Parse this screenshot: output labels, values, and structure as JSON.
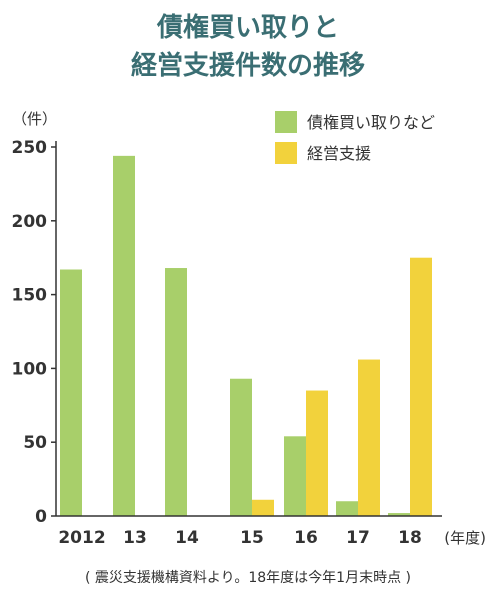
{
  "chart_data": {
    "type": "bar",
    "title_lines": [
      "債権買い取りと",
      "経営支援件数の推移"
    ],
    "ylabel": "（件）",
    "xlabel": "(年度)",
    "ylim": [
      0,
      250
    ],
    "yticks": [
      0,
      50,
      100,
      150,
      200,
      250
    ],
    "categories": [
      "2012",
      "13",
      "14",
      "15",
      "16",
      "17",
      "18"
    ],
    "series": [
      {
        "name": "債権買い取りなど",
        "color": "#a8cf6a",
        "values": [
          167,
          244,
          168,
          93,
          54,
          10,
          2
        ]
      },
      {
        "name": "経営支援",
        "color": "#f2d23c",
        "values": [
          0,
          0,
          0,
          11,
          85,
          106,
          175
        ]
      }
    ],
    "grid": false,
    "legend": "top-right",
    "source": "( 震災支援機構資料より。18年度は今年1月末時点 )",
    "colors": {
      "title": "#3a6e73",
      "text": "#333333",
      "axis": "#333333"
    }
  }
}
